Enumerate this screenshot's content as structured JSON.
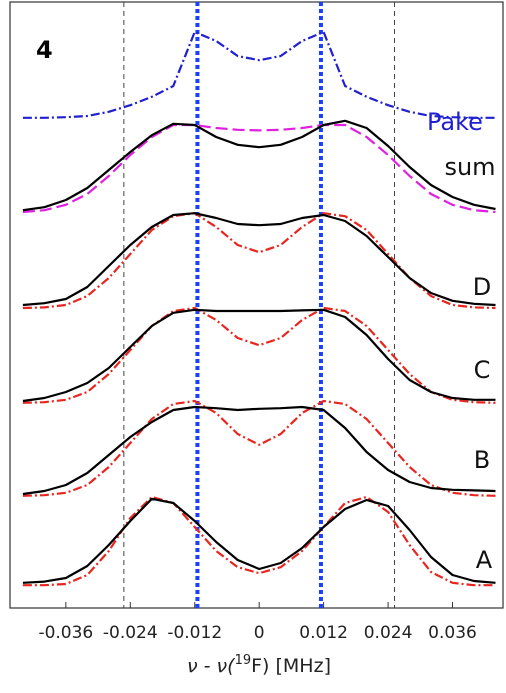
{
  "chart_data": {
    "type": "line",
    "panel_label": "4",
    "x_label": {
      "prefix": "ν - ν(",
      "sup": "19",
      "suffix": "F) [MHz]"
    },
    "x": [
      -0.044,
      -0.04,
      -0.036,
      -0.032,
      -0.028,
      -0.024,
      -0.02,
      -0.016,
      -0.012,
      -0.008,
      -0.004,
      0,
      0.004,
      0.008,
      0.012,
      0.016,
      0.02,
      0.024,
      0.028,
      0.032,
      0.036,
      0.04,
      0.044
    ],
    "xlim": [
      -0.0464,
      0.0454
    ],
    "ylim": [
      0,
      10.1
    ],
    "xticks": [
      -0.036,
      -0.024,
      -0.012,
      0,
      0.012,
      0.024,
      0.036
    ],
    "vlines": [
      {
        "color": "#444444",
        "style": "dashed",
        "values": [
          -0.0252,
          0.0252
        ]
      },
      {
        "color": "#1a3fff",
        "style": "dotted",
        "values": [
          -0.0115,
          0.0115
        ]
      }
    ],
    "series": [
      {
        "name": "Pake",
        "color": "#2020d0",
        "style": "dashdot",
        "values": [
          8.17,
          8.17,
          8.18,
          8.2,
          8.27,
          8.38,
          8.52,
          8.7,
          9.6,
          9.45,
          9.2,
          9.13,
          9.2,
          9.45,
          9.6,
          8.7,
          8.52,
          8.38,
          8.27,
          8.2,
          8.18,
          8.17,
          8.17
        ]
      },
      {
        "color": "#e020e0",
        "style": "dashed",
        "values": [
          6.6,
          6.63,
          6.72,
          6.9,
          7.2,
          7.55,
          7.85,
          8.05,
          8.05,
          8.0,
          7.97,
          7.96,
          7.97,
          8.0,
          8.05,
          8.05,
          7.85,
          7.55,
          7.2,
          6.9,
          6.72,
          6.63,
          6.6
        ]
      },
      {
        "name": "sum",
        "color": "#000000",
        "style": "solid",
        "values": [
          6.63,
          6.68,
          6.8,
          7.0,
          7.3,
          7.6,
          7.88,
          8.07,
          8.05,
          7.85,
          7.72,
          7.68,
          7.72,
          7.85,
          8.05,
          8.12,
          8.0,
          7.7,
          7.35,
          7.05,
          6.85,
          6.72,
          6.65
        ]
      },
      {
        "color": "#e8261f",
        "style": "dashdot",
        "values": [
          5.0,
          5.01,
          5.05,
          5.2,
          5.5,
          5.9,
          6.3,
          6.53,
          6.58,
          6.35,
          6.05,
          5.93,
          6.05,
          6.35,
          6.58,
          6.53,
          6.3,
          5.9,
          5.5,
          5.2,
          5.05,
          5.01,
          5.0
        ]
      },
      {
        "name": "D",
        "color": "#000000",
        "style": "solid",
        "values": [
          5.05,
          5.08,
          5.15,
          5.35,
          5.7,
          6.05,
          6.35,
          6.55,
          6.58,
          6.5,
          6.4,
          6.38,
          6.4,
          6.5,
          6.55,
          6.45,
          6.2,
          5.85,
          5.5,
          5.25,
          5.12,
          5.07,
          5.05
        ]
      },
      {
        "color": "#e8261f",
        "style": "dashdot",
        "values": [
          3.42,
          3.43,
          3.47,
          3.6,
          3.9,
          4.3,
          4.7,
          4.95,
          5.0,
          4.8,
          4.5,
          4.38,
          4.5,
          4.8,
          5.0,
          4.95,
          4.7,
          4.3,
          3.9,
          3.6,
          3.47,
          3.43,
          3.42
        ]
      },
      {
        "name": "C",
        "color": "#000000",
        "style": "solid",
        "values": [
          3.45,
          3.5,
          3.6,
          3.75,
          4.0,
          4.35,
          4.7,
          4.92,
          4.97,
          4.95,
          4.95,
          4.95,
          4.95,
          4.96,
          4.97,
          4.85,
          4.55,
          4.15,
          3.8,
          3.6,
          3.5,
          3.47,
          3.47
        ]
      },
      {
        "color": "#e8261f",
        "style": "dashdot",
        "values": [
          1.87,
          1.88,
          1.92,
          2.05,
          2.35,
          2.75,
          3.15,
          3.4,
          3.45,
          3.25,
          2.9,
          2.72,
          2.9,
          3.25,
          3.45,
          3.4,
          3.15,
          2.75,
          2.35,
          2.05,
          1.92,
          1.88,
          1.87
        ]
      },
      {
        "name": "B",
        "color": "#000000",
        "style": "solid",
        "values": [
          1.9,
          1.95,
          2.05,
          2.25,
          2.55,
          2.85,
          3.1,
          3.3,
          3.35,
          3.33,
          3.3,
          3.32,
          3.33,
          3.35,
          3.3,
          3.0,
          2.6,
          2.3,
          2.1,
          2.0,
          1.97,
          1.96,
          1.95
        ]
      },
      {
        "color": "#e8261f",
        "style": "dashdot",
        "values": [
          0.38,
          0.38,
          0.4,
          0.55,
          0.95,
          1.5,
          1.85,
          1.75,
          1.35,
          0.95,
          0.68,
          0.58,
          0.68,
          0.95,
          1.35,
          1.75,
          1.85,
          1.6,
          1.05,
          0.6,
          0.42,
          0.38,
          0.38
        ]
      },
      {
        "name": "A",
        "color": "#000000",
        "style": "solid",
        "values": [
          0.42,
          0.44,
          0.5,
          0.7,
          1.05,
          1.45,
          1.82,
          1.75,
          1.45,
          1.1,
          0.8,
          0.65,
          0.75,
          1.0,
          1.35,
          1.65,
          1.8,
          1.7,
          1.3,
          0.85,
          0.55,
          0.45,
          0.42
        ]
      }
    ]
  }
}
